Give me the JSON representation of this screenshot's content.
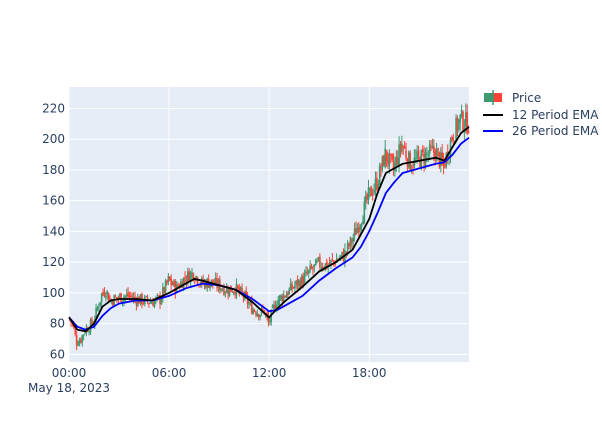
{
  "chart_data": {
    "type": "candlestick",
    "x_start": "2023-05-18 00:00",
    "x_end": "2023-05-18 23:59",
    "x_ticks": [
      {
        "t": "00:00",
        "label": "00:00",
        "sublabel": "May 18, 2023"
      },
      {
        "t": "06:00",
        "label": "06:00",
        "sublabel": ""
      },
      {
        "t": "12:00",
        "label": "12:00",
        "sublabel": ""
      },
      {
        "t": "18:00",
        "label": "18:00",
        "sublabel": ""
      }
    ],
    "y_ticks": [
      60,
      80,
      100,
      120,
      140,
      160,
      180,
      200,
      220
    ],
    "ylim": [
      55,
      234
    ],
    "grid": true,
    "legend_position": "top-right",
    "colors": {
      "background": "#e5ecf6",
      "grid": "#ffffff",
      "increasing": "#3d9970",
      "decreasing": "#ff4136",
      "ema12": "#000000",
      "ema26": "#0000ff"
    },
    "series": [
      {
        "name": "Price",
        "kind": "candlestick"
      },
      {
        "name": "12 Period EMA",
        "kind": "line"
      },
      {
        "name": "26 Period EMA",
        "kind": "line"
      }
    ],
    "price_path": [
      [
        "00:00",
        84
      ],
      [
        "00:15",
        80
      ],
      [
        "00:30",
        68
      ],
      [
        "00:45",
        70
      ],
      [
        "01:00",
        76
      ],
      [
        "01:15",
        78
      ],
      [
        "01:30",
        81
      ],
      [
        "01:45",
        90
      ],
      [
        "02:00",
        99
      ],
      [
        "02:15",
        102
      ],
      [
        "02:30",
        95
      ],
      [
        "03:00",
        97
      ],
      [
        "03:30",
        98
      ],
      [
        "04:00",
        96
      ],
      [
        "04:30",
        95
      ],
      [
        "05:00",
        94
      ],
      [
        "05:30",
        96
      ],
      [
        "06:00",
        108
      ],
      [
        "06:30",
        103
      ],
      [
        "07:00",
        110
      ],
      [
        "07:30",
        113
      ],
      [
        "08:00",
        106
      ],
      [
        "08:30",
        107
      ],
      [
        "09:00",
        105
      ],
      [
        "09:30",
        102
      ],
      [
        "10:00",
        103
      ],
      [
        "10:30",
        98
      ],
      [
        "11:00",
        90
      ],
      [
        "11:30",
        87
      ],
      [
        "11:45",
        88
      ],
      [
        "12:00",
        80
      ],
      [
        "12:15",
        88
      ],
      [
        "12:30",
        95
      ],
      [
        "13:00",
        99
      ],
      [
        "13:30",
        104
      ],
      [
        "14:00",
        108
      ],
      [
        "14:30",
        114
      ],
      [
        "15:00",
        119
      ],
      [
        "15:30",
        118
      ],
      [
        "16:00",
        121
      ],
      [
        "16:30",
        124
      ],
      [
        "17:00",
        134
      ],
      [
        "17:30",
        147
      ],
      [
        "18:00",
        163
      ],
      [
        "18:30",
        172
      ],
      [
        "19:00",
        190
      ],
      [
        "19:30",
        180
      ],
      [
        "20:00",
        197
      ],
      [
        "20:30",
        184
      ],
      [
        "21:00",
        187
      ],
      [
        "21:30",
        190
      ],
      [
        "22:00",
        192
      ],
      [
        "22:30",
        182
      ],
      [
        "23:00",
        202
      ],
      [
        "23:30",
        213
      ],
      [
        "23:59",
        210
      ]
    ],
    "ema12_path": [
      [
        "00:00",
        84
      ],
      [
        "00:30",
        76
      ],
      [
        "01:00",
        75
      ],
      [
        "01:30",
        80
      ],
      [
        "02:00",
        91
      ],
      [
        "02:30",
        95
      ],
      [
        "03:00",
        96
      ],
      [
        "04:00",
        96
      ],
      [
        "05:00",
        95
      ],
      [
        "06:00",
        100
      ],
      [
        "07:00",
        106
      ],
      [
        "07:30",
        109
      ],
      [
        "08:00",
        108
      ],
      [
        "09:00",
        105
      ],
      [
        "10:00",
        102
      ],
      [
        "11:00",
        94
      ],
      [
        "11:30",
        89
      ],
      [
        "12:00",
        84
      ],
      [
        "12:30",
        90
      ],
      [
        "13:00",
        95
      ],
      [
        "14:00",
        104
      ],
      [
        "15:00",
        114
      ],
      [
        "16:00",
        120
      ],
      [
        "17:00",
        128
      ],
      [
        "18:00",
        148
      ],
      [
        "18:30",
        165
      ],
      [
        "19:00",
        178
      ],
      [
        "19:30",
        181
      ],
      [
        "20:00",
        184
      ],
      [
        "21:00",
        186
      ],
      [
        "22:00",
        188
      ],
      [
        "22:30",
        186
      ],
      [
        "23:00",
        195
      ],
      [
        "23:30",
        204
      ],
      [
        "23:59",
        208
      ]
    ],
    "ema26_path": [
      [
        "00:00",
        84
      ],
      [
        "00:30",
        78
      ],
      [
        "01:00",
        76
      ],
      [
        "01:30",
        78
      ],
      [
        "02:00",
        85
      ],
      [
        "02:30",
        90
      ],
      [
        "03:00",
        93
      ],
      [
        "04:00",
        95
      ],
      [
        "05:00",
        95
      ],
      [
        "06:00",
        98
      ],
      [
        "07:00",
        103
      ],
      [
        "08:00",
        106
      ],
      [
        "09:00",
        105
      ],
      [
        "10:00",
        102
      ],
      [
        "11:00",
        96
      ],
      [
        "12:00",
        88
      ],
      [
        "12:30",
        89
      ],
      [
        "13:00",
        92
      ],
      [
        "14:00",
        98
      ],
      [
        "15:00",
        108
      ],
      [
        "16:00",
        116
      ],
      [
        "17:00",
        123
      ],
      [
        "17:30",
        130
      ],
      [
        "18:00",
        140
      ],
      [
        "18:30",
        152
      ],
      [
        "19:00",
        165
      ],
      [
        "19:30",
        172
      ],
      [
        "20:00",
        178
      ],
      [
        "21:00",
        181
      ],
      [
        "22:00",
        184
      ],
      [
        "22:30",
        185
      ],
      [
        "23:00",
        190
      ],
      [
        "23:30",
        197
      ],
      [
        "23:59",
        201
      ]
    ]
  }
}
